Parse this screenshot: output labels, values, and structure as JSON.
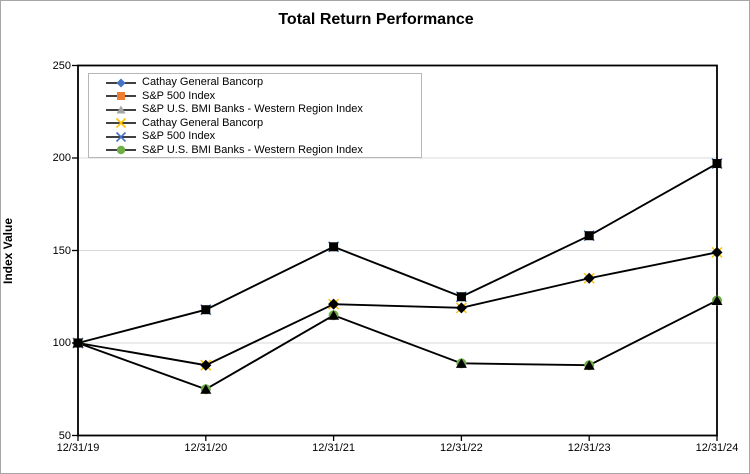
{
  "chart": {
    "title": "Total Return Performance",
    "y_axis_title": "Index Value"
  },
  "colors": {
    "line": "#000000",
    "marker": "#000000",
    "gridline": "#d9d9d9",
    "plot_border": "#000000",
    "outer_border": "#a6a6a6",
    "legend_border": "#b7b7b7",
    "legend_blue": "#4472C4",
    "legend_orange": "#ED7D31",
    "legend_gray": "#A5A5A5",
    "legend_yellow": "#FFC000",
    "legend_green": "#70AD47"
  },
  "chart_data": {
    "type": "line",
    "title": "Total Return Performance",
    "xlabel": "",
    "ylabel": "Index Value",
    "categories": [
      "12/31/19",
      "12/31/20",
      "12/31/21",
      "12/31/22",
      "12/31/23",
      "12/31/24"
    ],
    "y_ticks": [
      50,
      100,
      150,
      200,
      250
    ],
    "ylim": [
      50,
      250
    ],
    "grid": "horizontal",
    "legend_position": "inside-top-left",
    "series": [
      {
        "name": "Cathay General Bancorp",
        "legend_marker": "diamond",
        "legend_marker_color": "#4472C4",
        "chart_marker": "diamond",
        "line_color": "#000000",
        "values": [
          100,
          88,
          121,
          119,
          135,
          149
        ]
      },
      {
        "name": "S&P 500 Index",
        "legend_marker": "square",
        "legend_marker_color": "#ED7D31",
        "chart_marker": "square",
        "line_color": "#000000",
        "values": [
          100,
          118,
          152,
          125,
          158,
          197
        ]
      },
      {
        "name": "S&P U.S. BMI Banks - Western Region Index",
        "legend_marker": "triangle",
        "legend_marker_color": "#A5A5A5",
        "chart_marker": "triangle",
        "line_color": "#000000",
        "values": [
          100,
          75,
          115,
          89,
          88,
          123
        ]
      },
      {
        "name": "Cathay General Bancorp",
        "legend_marker": "x",
        "legend_marker_color": "#FFC000",
        "chart_marker": "x",
        "line_color": "#000000",
        "values": [
          100,
          88,
          121,
          119,
          135,
          149
        ]
      },
      {
        "name": "S&P 500 Index",
        "legend_marker": "x",
        "legend_marker_color": "#4472C4",
        "chart_marker": "x",
        "line_color": "#000000",
        "values": [
          100,
          118,
          152,
          125,
          158,
          197
        ]
      },
      {
        "name": "S&P U.S. BMI Banks - Western Region Index",
        "legend_marker": "circle",
        "legend_marker_color": "#70AD47",
        "chart_marker": "circle",
        "line_color": "#000000",
        "values": [
          100,
          75,
          115,
          89,
          88,
          123
        ]
      }
    ]
  }
}
